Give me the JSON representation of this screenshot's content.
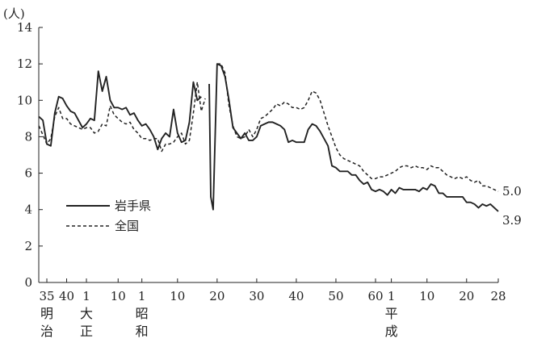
{
  "chart_data": {
    "type": "line",
    "ylabel": "(人)",
    "ylim": [
      0,
      14
    ],
    "yticks": [
      0,
      2,
      4,
      6,
      8,
      10,
      12,
      14
    ],
    "xlim": [
      1902,
      2016
    ],
    "xticks": [
      {
        "year": 1902,
        "label": "35"
      },
      {
        "year": 1907,
        "label": "40"
      },
      {
        "year": 1912,
        "label": "1"
      },
      {
        "year": 1920,
        "label": "10"
      },
      {
        "year": 1926,
        "label": "1"
      },
      {
        "year": 1935,
        "label": "10"
      },
      {
        "year": 1945,
        "label": "20"
      },
      {
        "year": 1955,
        "label": "30"
      },
      {
        "year": 1965,
        "label": "40"
      },
      {
        "year": 1975,
        "label": "50"
      },
      {
        "year": 1985,
        "label": "60"
      },
      {
        "year": 1989,
        "label": "1"
      },
      {
        "year": 1998,
        "label": "10"
      },
      {
        "year": 2008,
        "label": "20"
      },
      {
        "year": 2016,
        "label": "28"
      }
    ],
    "eras": [
      {
        "year": 1902,
        "chars": [
          "明",
          "治"
        ]
      },
      {
        "year": 1912,
        "chars": [
          "大",
          "正"
        ]
      },
      {
        "year": 1926,
        "chars": [
          "昭",
          "和"
        ]
      },
      {
        "year": 1989,
        "chars": [
          "平",
          "成"
        ]
      }
    ],
    "series": [
      {
        "name": "岩手県",
        "dash": "solid",
        "end_label": "3.9",
        "segments": [
          [
            [
              1900,
              9.1
            ],
            [
              1901,
              8.9
            ],
            [
              1902,
              7.6
            ],
            [
              1903,
              7.5
            ],
            [
              1904,
              9.3
            ],
            [
              1905,
              10.2
            ],
            [
              1906,
              10.1
            ],
            [
              1907,
              9.7
            ],
            [
              1908,
              9.4
            ],
            [
              1909,
              9.3
            ],
            [
              1910,
              8.9
            ],
            [
              1911,
              8.5
            ],
            [
              1912,
              8.7
            ],
            [
              1913,
              9.0
            ],
            [
              1914,
              8.9
            ],
            [
              1915,
              11.6
            ],
            [
              1916,
              10.5
            ],
            [
              1917,
              11.3
            ],
            [
              1918,
              10.0
            ],
            [
              1919,
              9.6
            ],
            [
              1920,
              9.6
            ],
            [
              1921,
              9.5
            ],
            [
              1922,
              9.6
            ],
            [
              1923,
              9.2
            ],
            [
              1924,
              9.3
            ],
            [
              1925,
              8.9
            ],
            [
              1926,
              8.6
            ],
            [
              1927,
              8.7
            ],
            [
              1928,
              8.4
            ],
            [
              1929,
              8.0
            ],
            [
              1930,
              7.3
            ],
            [
              1931,
              7.9
            ],
            [
              1932,
              8.2
            ],
            [
              1933,
              8.0
            ],
            [
              1934,
              9.5
            ],
            [
              1935,
              8.2
            ],
            [
              1936,
              7.7
            ],
            [
              1937,
              7.8
            ],
            [
              1938,
              8.8
            ],
            [
              1939,
              11.0
            ],
            [
              1940,
              10.0
            ],
            [
              1941,
              10.2
            ]
          ],
          [
            [
              1943,
              10.9
            ],
            [
              1943.4,
              4.7
            ],
            [
              1944,
              4.0
            ],
            [
              1945,
              12.0
            ],
            [
              1946,
              11.9
            ],
            [
              1947,
              11.3
            ],
            [
              1948,
              10.0
            ],
            [
              1949,
              8.5
            ],
            [
              1950,
              8.2
            ],
            [
              1951,
              7.9
            ],
            [
              1952,
              8.2
            ],
            [
              1953,
              7.8
            ],
            [
              1954,
              7.8
            ],
            [
              1955,
              8.0
            ],
            [
              1956,
              8.6
            ],
            [
              1957,
              8.7
            ],
            [
              1958,
              8.8
            ],
            [
              1959,
              8.8
            ],
            [
              1960,
              8.7
            ],
            [
              1961,
              8.6
            ],
            [
              1962,
              8.4
            ],
            [
              1963,
              7.7
            ],
            [
              1964,
              7.8
            ],
            [
              1965,
              7.7
            ],
            [
              1966,
              7.7
            ],
            [
              1967,
              7.7
            ],
            [
              1968,
              8.4
            ],
            [
              1969,
              8.7
            ],
            [
              1970,
              8.6
            ],
            [
              1971,
              8.3
            ],
            [
              1972,
              7.9
            ],
            [
              1973,
              7.5
            ],
            [
              1974,
              6.4
            ],
            [
              1975,
              6.3
            ],
            [
              1976,
              6.1
            ],
            [
              1977,
              6.1
            ],
            [
              1978,
              6.1
            ],
            [
              1979,
              5.9
            ],
            [
              1980,
              5.9
            ],
            [
              1981,
              5.6
            ],
            [
              1982,
              5.4
            ],
            [
              1983,
              5.5
            ],
            [
              1984,
              5.1
            ],
            [
              1985,
              5.0
            ],
            [
              1986,
              5.1
            ],
            [
              1987,
              5.0
            ],
            [
              1988,
              4.8
            ],
            [
              1989,
              5.1
            ],
            [
              1990,
              4.9
            ],
            [
              1991,
              5.2
            ],
            [
              1992,
              5.1
            ],
            [
              1993,
              5.1
            ],
            [
              1994,
              5.1
            ],
            [
              1995,
              5.1
            ],
            [
              1996,
              5.0
            ],
            [
              1997,
              5.2
            ],
            [
              1998,
              5.1
            ],
            [
              1999,
              5.4
            ],
            [
              2000,
              5.3
            ],
            [
              2001,
              4.9
            ],
            [
              2002,
              4.9
            ],
            [
              2003,
              4.7
            ],
            [
              2004,
              4.7
            ],
            [
              2005,
              4.7
            ],
            [
              2006,
              4.7
            ],
            [
              2007,
              4.7
            ],
            [
              2008,
              4.4
            ],
            [
              2009,
              4.4
            ],
            [
              2010,
              4.3
            ],
            [
              2011,
              4.1
            ],
            [
              2012,
              4.3
            ],
            [
              2013,
              4.2
            ],
            [
              2014,
              4.3
            ],
            [
              2015,
              4.1
            ],
            [
              2016,
              3.9
            ]
          ]
        ]
      },
      {
        "name": "全国",
        "dash": "dashed",
        "end_label": "5.0",
        "segments": [
          [
            [
              1900,
              8.6
            ],
            [
              1901,
              8.1
            ],
            [
              1902,
              7.6
            ],
            [
              1903,
              7.9
            ],
            [
              1904,
              9.1
            ],
            [
              1905,
              9.6
            ],
            [
              1906,
              9.0
            ],
            [
              1907,
              9.0
            ],
            [
              1908,
              8.7
            ],
            [
              1909,
              8.6
            ],
            [
              1910,
              8.5
            ],
            [
              1911,
              8.4
            ],
            [
              1912,
              8.5
            ],
            [
              1913,
              8.5
            ],
            [
              1914,
              8.2
            ],
            [
              1915,
              8.3
            ],
            [
              1916,
              8.7
            ],
            [
              1917,
              8.6
            ],
            [
              1918,
              9.7
            ],
            [
              1919,
              9.2
            ],
            [
              1920,
              9.0
            ],
            [
              1921,
              8.8
            ],
            [
              1922,
              8.7
            ],
            [
              1923,
              8.8
            ],
            [
              1924,
              8.4
            ],
            [
              1925,
              8.2
            ],
            [
              1926,
              7.9
            ],
            [
              1927,
              7.9
            ],
            [
              1928,
              7.8
            ],
            [
              1929,
              7.9
            ],
            [
              1930,
              7.9
            ],
            [
              1931,
              7.2
            ],
            [
              1932,
              7.6
            ],
            [
              1933,
              7.6
            ],
            [
              1934,
              7.7
            ],
            [
              1935,
              8.0
            ],
            [
              1936,
              8.2
            ],
            [
              1937,
              7.6
            ],
            [
              1938,
              7.8
            ],
            [
              1939,
              9.3
            ],
            [
              1940,
              11.0
            ],
            [
              1941,
              9.4
            ],
            [
              1942,
              10.1
            ]
          ],
          [
            [
              1945,
              12.0
            ],
            [
              1946,
              12.0
            ],
            [
              1947,
              11.5
            ],
            [
              1948,
              9.7
            ],
            [
              1949,
              8.6
            ],
            [
              1950,
              8.0
            ],
            [
              1951,
              7.9
            ],
            [
              1952,
              8.0
            ],
            [
              1953,
              8.4
            ],
            [
              1954,
              8.0
            ],
            [
              1955,
              8.4
            ],
            [
              1956,
              9.0
            ],
            [
              1957,
              9.1
            ],
            [
              1958,
              9.3
            ],
            [
              1959,
              9.5
            ],
            [
              1960,
              9.8
            ],
            [
              1961,
              9.7
            ],
            [
              1962,
              9.9
            ],
            [
              1963,
              9.8
            ],
            [
              1964,
              9.6
            ],
            [
              1965,
              9.6
            ],
            [
              1966,
              9.5
            ],
            [
              1967,
              9.6
            ],
            [
              1968,
              10.0
            ],
            [
              1969,
              10.5
            ],
            [
              1970,
              10.4
            ],
            [
              1971,
              10.0
            ],
            [
              1972,
              9.3
            ],
            [
              1973,
              8.6
            ],
            [
              1974,
              8.0
            ],
            [
              1975,
              7.4
            ],
            [
              1976,
              7.0
            ],
            [
              1977,
              6.8
            ],
            [
              1978,
              6.7
            ],
            [
              1979,
              6.6
            ],
            [
              1980,
              6.5
            ],
            [
              1981,
              6.4
            ],
            [
              1982,
              6.1
            ],
            [
              1983,
              5.9
            ],
            [
              1984,
              5.7
            ],
            [
              1985,
              5.7
            ],
            [
              1986,
              5.8
            ],
            [
              1987,
              5.8
            ],
            [
              1988,
              5.9
            ],
            [
              1989,
              6.0
            ],
            [
              1990,
              6.1
            ],
            [
              1991,
              6.3
            ],
            [
              1992,
              6.4
            ],
            [
              1993,
              6.4
            ],
            [
              1994,
              6.3
            ],
            [
              1995,
              6.4
            ],
            [
              1996,
              6.3
            ],
            [
              1997,
              6.3
            ],
            [
              1998,
              6.2
            ],
            [
              1999,
              6.4
            ],
            [
              2000,
              6.3
            ],
            [
              2001,
              6.3
            ],
            [
              2002,
              6.1
            ],
            [
              2003,
              5.9
            ],
            [
              2004,
              5.8
            ],
            [
              2005,
              5.7
            ],
            [
              2006,
              5.8
            ],
            [
              2007,
              5.7
            ],
            [
              2008,
              5.8
            ],
            [
              2009,
              5.6
            ],
            [
              2010,
              5.5
            ],
            [
              2011,
              5.6
            ],
            [
              2012,
              5.3
            ],
            [
              2013,
              5.3
            ],
            [
              2014,
              5.2
            ],
            [
              2015,
              5.1
            ],
            [
              2016,
              5.0
            ]
          ]
        ]
      }
    ]
  }
}
